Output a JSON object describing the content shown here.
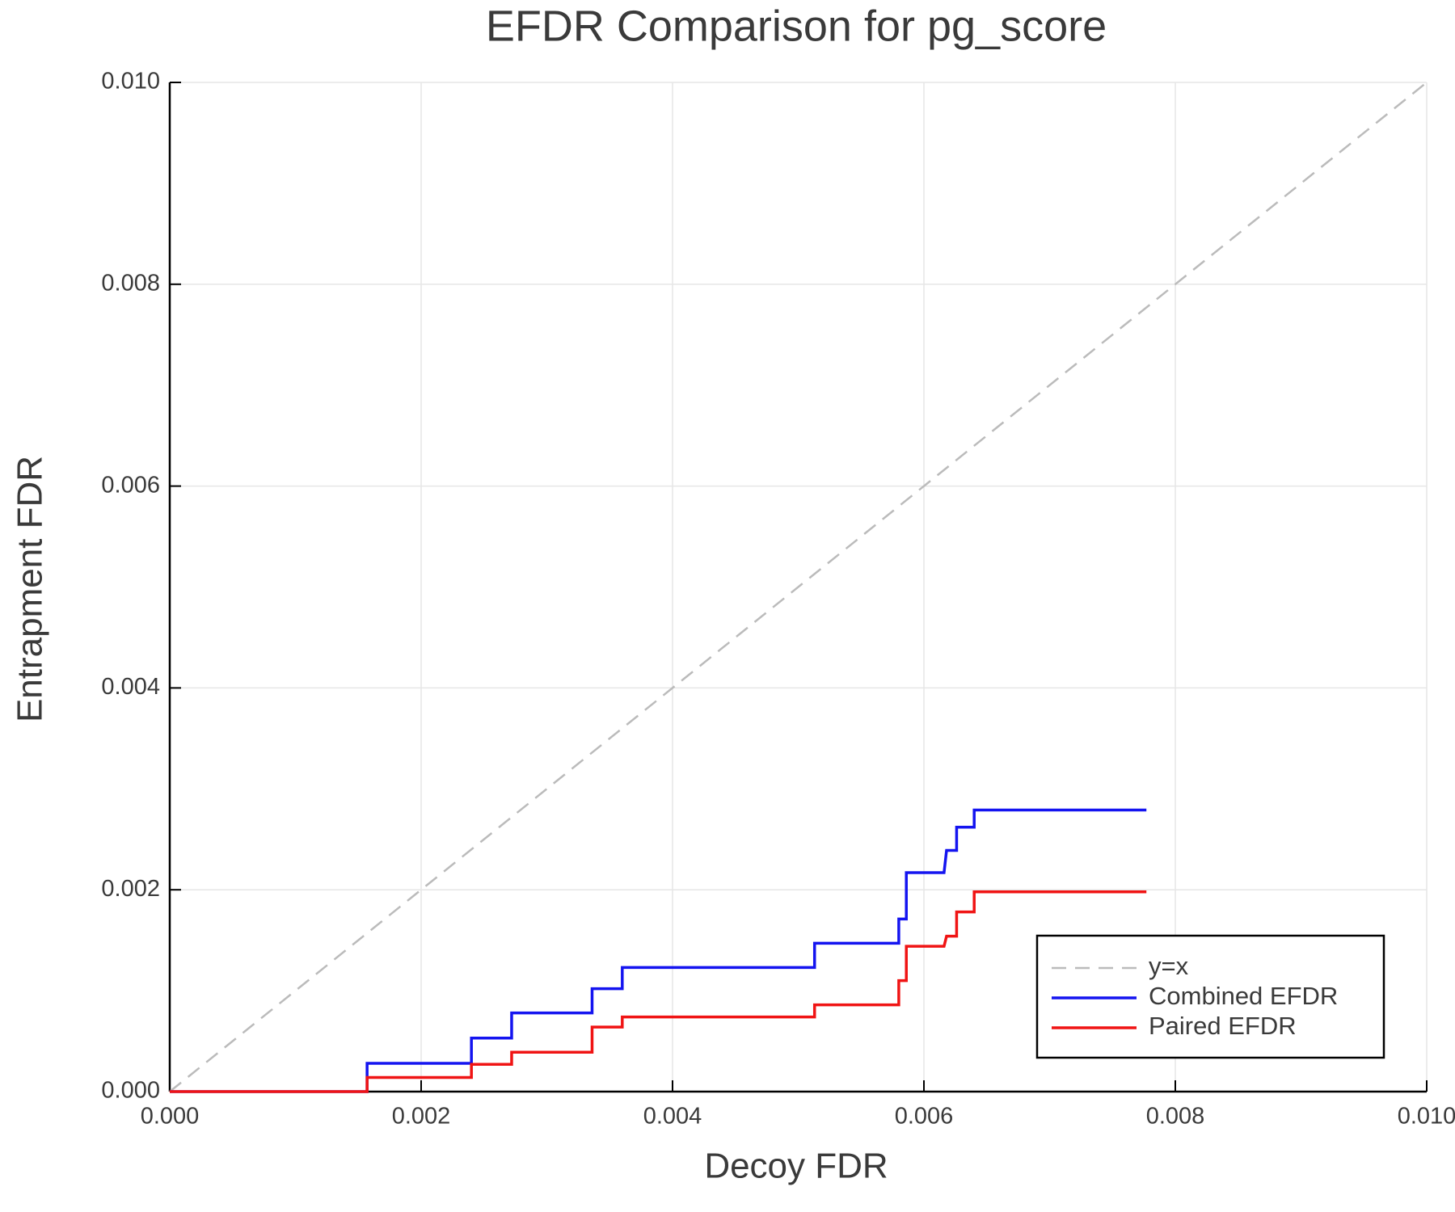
{
  "chart_data": {
    "type": "line",
    "title": "EFDR Comparison for pg_score",
    "xlabel": "Decoy FDR",
    "ylabel": "Entrapment FDR",
    "xlim": [
      0,
      0.01
    ],
    "ylim": [
      0,
      0.01
    ],
    "xticks": [
      {
        "value": 0,
        "label": "0.000"
      },
      {
        "value": 0.002,
        "label": "0.002"
      },
      {
        "value": 0.004,
        "label": "0.004"
      },
      {
        "value": 0.006,
        "label": "0.006"
      },
      {
        "value": 0.008,
        "label": "0.008"
      },
      {
        "value": 0.01,
        "label": "0.010"
      }
    ],
    "yticks": [
      {
        "value": 0,
        "label": "0.000"
      },
      {
        "value": 0.002,
        "label": "0.002"
      },
      {
        "value": 0.004,
        "label": "0.004"
      },
      {
        "value": 0.006,
        "label": "0.006"
      },
      {
        "value": 0.008,
        "label": "0.008"
      },
      {
        "value": 0.01,
        "label": "0.010"
      }
    ],
    "grid": true,
    "legend": "lower right",
    "series": [
      {
        "name": "y=x",
        "color": "#bbbbbb",
        "dash": true,
        "x": [
          0,
          0.01
        ],
        "values": [
          0,
          0.01
        ]
      },
      {
        "name": "Combined EFDR",
        "color": "#1414f0",
        "dash": false,
        "x": [
          0,
          0.00157,
          0.00157,
          0.0024,
          0.0024,
          0.00272,
          0.00272,
          0.00336,
          0.00336,
          0.0036,
          0.0036,
          0.00513,
          0.00513,
          0.0058,
          0.0058,
          0.00586,
          0.00586,
          0.00616,
          0.00618,
          0.00626,
          0.00626,
          0.0064,
          0.0064,
          0.00777
        ],
        "values": [
          0,
          0,
          0.00028,
          0.00028,
          0.00053,
          0.00053,
          0.00078,
          0.00078,
          0.00102,
          0.00102,
          0.00123,
          0.00123,
          0.00147,
          0.00147,
          0.00171,
          0.00171,
          0.00217,
          0.00217,
          0.00239,
          0.00239,
          0.00262,
          0.00262,
          0.00279,
          0.00279
        ]
      },
      {
        "name": "Paired EFDR",
        "color": "#f01414",
        "dash": false,
        "x": [
          0,
          0.00157,
          0.00157,
          0.0024,
          0.0024,
          0.00272,
          0.00272,
          0.00336,
          0.00336,
          0.0036,
          0.0036,
          0.00513,
          0.00513,
          0.0058,
          0.0058,
          0.00586,
          0.00586,
          0.00616,
          0.00618,
          0.00626,
          0.00626,
          0.0064,
          0.0064,
          0.00777
        ],
        "values": [
          0,
          0,
          0.00014,
          0.00014,
          0.00027,
          0.00027,
          0.00039,
          0.00039,
          0.00064,
          0.00064,
          0.00074,
          0.00074,
          0.00086,
          0.00086,
          0.0011,
          0.0011,
          0.00144,
          0.00144,
          0.00154,
          0.00154,
          0.00178,
          0.00178,
          0.00198,
          0.00198
        ]
      }
    ]
  }
}
